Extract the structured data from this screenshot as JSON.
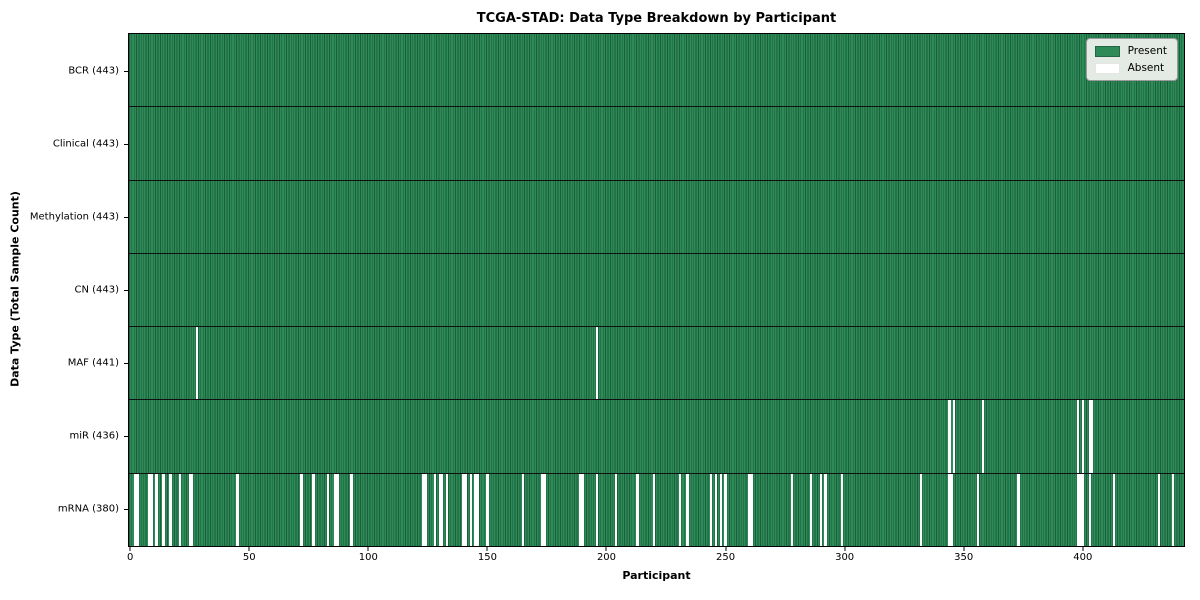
{
  "figure": {
    "title": "TCGA-STAD: Data Type Breakdown by Participant",
    "xlabel": "Participant",
    "ylabel": "Data Type (Total Sample Count)"
  },
  "legend": {
    "items": [
      {
        "label": "Present",
        "color": "#2e8b57"
      },
      {
        "label": "Absent",
        "color": "#ffffff"
      }
    ],
    "position": "upper right"
  },
  "chart_data": {
    "type": "heatmap",
    "title": "TCGA-STAD: Data Type Breakdown by Participant",
    "xlabel": "Participant",
    "ylabel": "Data Type (Total Sample Count)",
    "x_range": [
      0,
      443
    ],
    "n_participants": 443,
    "x_ticks": [
      0,
      50,
      100,
      150,
      200,
      250,
      300,
      350,
      400
    ],
    "grid": false,
    "legend_position": "upper right",
    "colors": {
      "present": "#2e8b57",
      "present_edge": "#1b5e3b",
      "absent": "#ffffff",
      "row_divider": "#101010"
    },
    "rows": [
      {
        "label": "BCR (443)",
        "data_type": "BCR",
        "total_sample_count": 443,
        "absent_participants": []
      },
      {
        "label": "Clinical (443)",
        "data_type": "Clinical",
        "total_sample_count": 443,
        "absent_participants": []
      },
      {
        "label": "Methylation (443)",
        "data_type": "Methylation",
        "total_sample_count": 443,
        "absent_participants": []
      },
      {
        "label": "CN (443)",
        "data_type": "CN",
        "total_sample_count": 443,
        "absent_participants": []
      },
      {
        "label": "MAF (441)",
        "data_type": "MAF",
        "total_sample_count": 441,
        "absent_participants": [
          28,
          196
        ]
      },
      {
        "label": "miR (436)",
        "data_type": "miR",
        "total_sample_count": 436,
        "absent_participants": [
          344,
          346,
          358,
          398,
          400,
          403,
          404
        ]
      },
      {
        "label": "mRNA (380)",
        "data_type": "mRNA",
        "total_sample_count": 380,
        "absent_participants": [
          2,
          3,
          8,
          9,
          11,
          14,
          17,
          21,
          25,
          26,
          45,
          72,
          77,
          83,
          86,
          87,
          93,
          123,
          124,
          128,
          130,
          131,
          133,
          140,
          141,
          143,
          145,
          146,
          150,
          165,
          173,
          174,
          189,
          190,
          196,
          204,
          213,
          220,
          231,
          234,
          244,
          246,
          248,
          250,
          260,
          261,
          278,
          286,
          290,
          292,
          299,
          332,
          344,
          345,
          356,
          373,
          398,
          399,
          400,
          403,
          413,
          432,
          438
        ]
      }
    ]
  }
}
